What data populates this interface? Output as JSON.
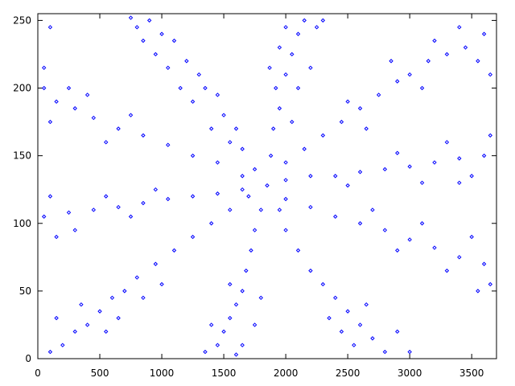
{
  "chart_data": {
    "type": "scatter",
    "color": "#0000ff",
    "x": [
      1750,
      1650,
      1600,
      1500,
      1450,
      1350,
      1300,
      1200,
      1100,
      1000,
      900,
      800,
      750,
      1050,
      1250,
      1150,
      950,
      850,
      1400,
      1550,
      1880,
      1900,
      1950,
      1920,
      2000,
      2050,
      2100,
      2150,
      2000,
      2250,
      1950,
      2200,
      2100,
      1870,
      2300,
      2050,
      2000,
      2150,
      2300,
      2450,
      2600,
      2750,
      2900,
      3000,
      3150,
      3300,
      3450,
      3600,
      3550,
      3400,
      3200,
      2850,
      2650,
      3650,
      3100,
      2500,
      2000,
      2200,
      2400,
      2600,
      2800,
      3000,
      3200,
      3400,
      3600,
      3650,
      3500,
      3300,
      3100,
      2900,
      2500,
      3400,
      2000,
      2200,
      2400,
      2600,
      2800,
      3000,
      3200,
      3400,
      3600,
      3650,
      3500,
      3300,
      3100,
      2900,
      3550,
      2700,
      1950,
      2000,
      2100,
      2200,
      2300,
      2400,
      2500,
      2600,
      2700,
      2800,
      2900,
      2550,
      2450,
      2650,
      2350,
      3000,
      1800,
      1750,
      1720,
      1680,
      1650,
      1600,
      1550,
      1500,
      1450,
      1350,
      1650,
      1750,
      1550,
      1400,
      1800,
      1600,
      1700,
      1550,
      1400,
      1250,
      1100,
      950,
      800,
      700,
      600,
      500,
      400,
      300,
      200,
      100,
      350,
      550,
      850,
      150,
      650,
      1000,
      1650,
      1450,
      1250,
      1050,
      850,
      650,
      450,
      250,
      50,
      100,
      300,
      550,
      750,
      950,
      150,
      1650,
      1450,
      1250,
      1050,
      850,
      650,
      450,
      300,
      150,
      50,
      100,
      250,
      550,
      750,
      50,
      400,
      100,
      1850
    ],
    "values": [
      140,
      155,
      170,
      180,
      195,
      200,
      210,
      220,
      235,
      240,
      250,
      245,
      252,
      215,
      190,
      200,
      225,
      235,
      170,
      160,
      150,
      170,
      185,
      200,
      210,
      225,
      240,
      250,
      245,
      245,
      230,
      215,
      200,
      215,
      250,
      175,
      145,
      155,
      165,
      175,
      185,
      195,
      205,
      210,
      220,
      225,
      230,
      240,
      220,
      245,
      235,
      220,
      170,
      210,
      200,
      190,
      132,
      135,
      135,
      138,
      140,
      142,
      145,
      148,
      150,
      165,
      135,
      160,
      130,
      152,
      128,
      130,
      118,
      112,
      105,
      100,
      95,
      88,
      82,
      75,
      70,
      55,
      90,
      65,
      100,
      80,
      50,
      110,
      110,
      95,
      80,
      65,
      55,
      45,
      35,
      25,
      15,
      5,
      20,
      10,
      20,
      40,
      30,
      5,
      110,
      95,
      80,
      65,
      50,
      40,
      30,
      20,
      10,
      5,
      10,
      25,
      55,
      25,
      45,
      3,
      120,
      110,
      100,
      90,
      80,
      70,
      60,
      50,
      45,
      35,
      25,
      20,
      10,
      5,
      40,
      20,
      45,
      30,
      30,
      55,
      125,
      122,
      120,
      118,
      115,
      112,
      110,
      108,
      105,
      120,
      95,
      120,
      105,
      125,
      90,
      135,
      145,
      150,
      158,
      165,
      170,
      178,
      185,
      190,
      200,
      175,
      200,
      160,
      180,
      215,
      195,
      245,
      128
    ],
    "xlim": [
      0,
      3700
    ],
    "ylim": [
      0,
      255
    ],
    "xticks": [
      0,
      500,
      1000,
      1500,
      2000,
      2500,
      3000,
      3500
    ],
    "yticks": [
      0,
      50,
      100,
      150,
      200,
      250
    ]
  }
}
